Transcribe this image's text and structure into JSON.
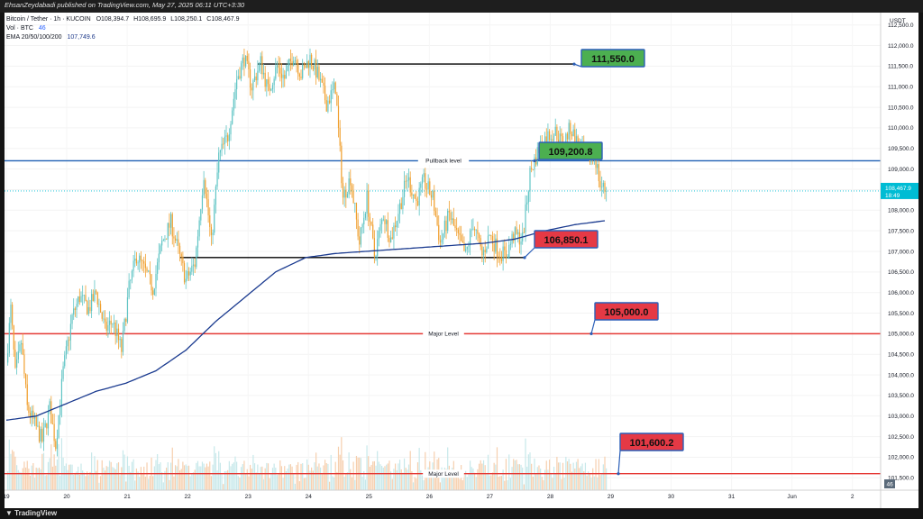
{
  "header": {
    "published_line": "EhsanZeydabadi published on TradingView.com, May 27, 2025 06:11 UTC+3:30",
    "symbol_line": "Bitcoin / Tether · 1h · KUCOIN",
    "ohlc": {
      "o": "O108,394.7",
      "h": "H108,695.9",
      "l": "L108,250.1",
      "c": "C108,467.9"
    },
    "vol_line": "Vol · BTC",
    "vol_value": "46",
    "ema_line": "EMA 20/50/100/200",
    "ema_value": "107,749.6"
  },
  "footer": {
    "brand": "TradingView"
  },
  "colors": {
    "up": "#5fc4c4",
    "down": "#f0a030",
    "ema": "#1a3a8f",
    "pullback": "#1d5fb3",
    "major": "#e53935",
    "support": "#000000",
    "green_box": "#4caf50",
    "red_box": "#e53945",
    "price_label": "#00bcd4"
  },
  "chart_data": {
    "type": "candlestick",
    "currency": "USDT",
    "ylim": [
      101200,
      112800
    ],
    "y_ticks": [
      "112,500.0",
      "112,000.0",
      "111,500.0",
      "111,000.0",
      "110,500.0",
      "110,000.0",
      "109,500.0",
      "109,000.0",
      "108,500.0",
      "108,000.0",
      "107,500.0",
      "107,000.0",
      "106,500.0",
      "106,000.0",
      "105,500.0",
      "105,000.0",
      "104,500.0",
      "104,000.0",
      "103,500.0",
      "103,000.0",
      "102,500.0",
      "102,000.0",
      "101,500.0"
    ],
    "x_ticks": [
      "19",
      "20",
      "21",
      "22",
      "23",
      "24",
      "25",
      "26",
      "27",
      "28",
      "29",
      "30",
      "31",
      "Jun",
      "2"
    ],
    "current_price": {
      "value": 108467.9,
      "label": "108,467.9",
      "timer": "18:49"
    },
    "volume_badge": "46",
    "price_anchors": [
      [
        0,
        104300
      ],
      [
        3,
        105600
      ],
      [
        6,
        104000
      ],
      [
        10,
        104800
      ],
      [
        14,
        103200
      ],
      [
        19,
        102800
      ],
      [
        24,
        102400
      ],
      [
        29,
        103200
      ],
      [
        33,
        102300
      ],
      [
        38,
        104100
      ],
      [
        44,
        105400
      ],
      [
        49,
        105900
      ],
      [
        55,
        105600
      ],
      [
        60,
        106000
      ],
      [
        66,
        105100
      ],
      [
        71,
        105300
      ],
      [
        77,
        104600
      ],
      [
        82,
        106100
      ],
      [
        87,
        106900
      ],
      [
        93,
        106500
      ],
      [
        98,
        106100
      ],
      [
        104,
        107200
      ],
      [
        110,
        107700
      ],
      [
        115,
        107000
      ],
      [
        120,
        106300
      ],
      [
        126,
        106700
      ],
      [
        132,
        108900
      ],
      [
        137,
        107200
      ],
      [
        142,
        109300
      ],
      [
        148,
        109800
      ],
      [
        154,
        111200
      ],
      [
        159,
        111700
      ],
      [
        164,
        111000
      ],
      [
        170,
        111600
      ],
      [
        175,
        110900
      ],
      [
        181,
        111500
      ],
      [
        186,
        111200
      ],
      [
        192,
        111800
      ],
      [
        197,
        111300
      ],
      [
        203,
        111700
      ],
      [
        208,
        111300
      ],
      [
        214,
        110600
      ],
      [
        220,
        111000
      ],
      [
        225,
        108300
      ],
      [
        230,
        108800
      ],
      [
        236,
        107200
      ],
      [
        241,
        108300
      ],
      [
        246,
        106900
      ],
      [
        252,
        107900
      ],
      [
        257,
        107300
      ],
      [
        263,
        108100
      ],
      [
        268,
        108800
      ],
      [
        274,
        108200
      ],
      [
        279,
        108700
      ],
      [
        285,
        108300
      ],
      [
        290,
        107200
      ],
      [
        296,
        107900
      ],
      [
        301,
        107400
      ],
      [
        307,
        106900
      ],
      [
        312,
        107700
      ],
      [
        318,
        106900
      ],
      [
        323,
        107400
      ],
      [
        329,
        107000
      ],
      [
        334,
        106900
      ],
      [
        339,
        107400
      ],
      [
        345,
        107300
      ],
      [
        350,
        108900
      ],
      [
        356,
        109500
      ],
      [
        361,
        109800
      ],
      [
        367,
        109900
      ],
      [
        372,
        109600
      ],
      [
        377,
        110000
      ],
      [
        383,
        109500
      ],
      [
        388,
        109200
      ],
      [
        393,
        109400
      ],
      [
        397,
        108600
      ],
      [
        401,
        108467.9
      ]
    ],
    "ema_anchors": [
      [
        0,
        102900
      ],
      [
        20,
        103000
      ],
      [
        40,
        103300
      ],
      [
        60,
        103600
      ],
      [
        80,
        103800
      ],
      [
        100,
        104100
      ],
      [
        120,
        104600
      ],
      [
        140,
        105300
      ],
      [
        160,
        105900
      ],
      [
        180,
        106500
      ],
      [
        200,
        106850
      ],
      [
        220,
        106950
      ],
      [
        260,
        107050
      ],
      [
        300,
        107150
      ],
      [
        320,
        107200
      ],
      [
        340,
        107300
      ],
      [
        360,
        107500
      ],
      [
        380,
        107650
      ],
      [
        401,
        107750
      ]
    ],
    "levels": [
      {
        "price": 109200.8,
        "style": "pullback",
        "label": "Pullback level",
        "callout": "109,200.8",
        "box": "green"
      },
      {
        "price": 105000.0,
        "style": "major",
        "label": "Major Level",
        "callout": "105,000.0",
        "box": "red"
      },
      {
        "price": 101600.2,
        "style": "major",
        "label": "Major Level",
        "callout": "101,600.2",
        "box": "red"
      }
    ],
    "segments": [
      {
        "price": 111550.0,
        "from_bar": 168,
        "callout": "111,550.0",
        "box": "green"
      },
      {
        "price": 106850.1,
        "from_bar": 116,
        "callout": "106,850.1",
        "box": "red"
      }
    ]
  }
}
